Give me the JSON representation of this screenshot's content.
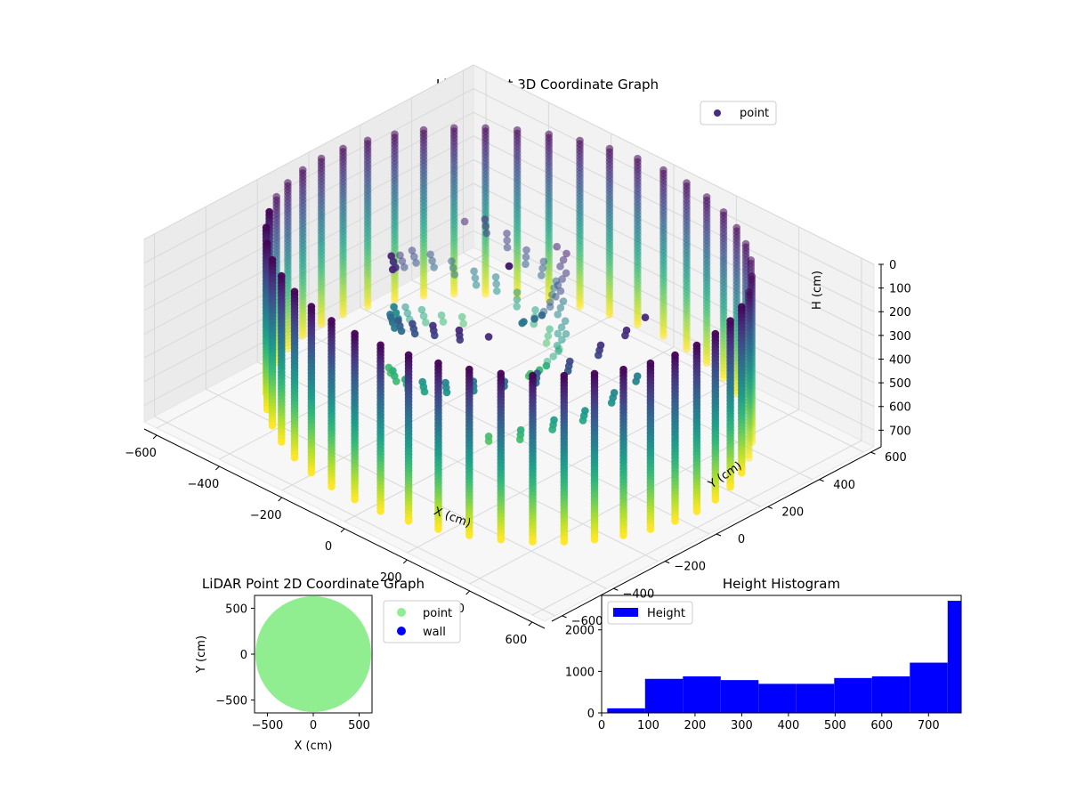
{
  "chart_data": [
    {
      "type": "scatter",
      "projection": "3d",
      "title": "LiDAR Point 3D Coordinate Graph",
      "xlabel": "X (cm)",
      "ylabel": "Y (cm)",
      "zlabel": "H (cm)",
      "x_ticks": [
        -600,
        -400,
        -200,
        0,
        200,
        400,
        600
      ],
      "y_ticks": [
        -600,
        -400,
        -200,
        0,
        200,
        400,
        600
      ],
      "z_ticks": [
        0,
        100,
        200,
        300,
        400,
        500,
        600,
        700
      ],
      "xlim": [
        -640,
        640
      ],
      "ylim": [
        -640,
        640
      ],
      "zlim": [
        0,
        770
      ],
      "z_inverted": true,
      "colormap": "viridis",
      "legend": {
        "position": "top-right",
        "entries": [
          {
            "label": "point",
            "color": "#472d7b"
          }
        ]
      },
      "series": [
        {
          "name": "point",
          "shape": "ring",
          "radius": 600,
          "height_range": [
            0,
            700
          ],
          "columns": 48
        }
      ],
      "grid": true
    },
    {
      "type": "scatter",
      "title": "LiDAR Point 2D Coordinate Graph",
      "xlabel": "X (cm)",
      "ylabel": "Y (cm)",
      "x_ticks": [
        -500,
        0,
        500
      ],
      "y_ticks": [
        -500,
        0,
        500
      ],
      "xlim": [
        -640,
        640
      ],
      "ylim": [
        -640,
        640
      ],
      "legend": {
        "position": "right",
        "entries": [
          {
            "label": "point",
            "color": "#90ee90"
          },
          {
            "label": "wall",
            "color": "#0000ff"
          }
        ]
      },
      "series": [
        {
          "name": "point",
          "color": "#90ee90",
          "shape": "disc",
          "radius": 630
        }
      ],
      "grid": false
    },
    {
      "type": "bar",
      "subtype": "histogram",
      "title": "Height Histogram",
      "x_ticks": [
        0,
        100,
        200,
        300,
        400,
        500,
        600,
        700
      ],
      "y_ticks": [
        0,
        1000,
        2000
      ],
      "xlim": [
        0,
        770
      ],
      "ylim": [
        0,
        2830
      ],
      "color": "#0000ff",
      "legend": {
        "position": "top-left",
        "entries": [
          {
            "label": "Height",
            "color": "#0000ff"
          }
        ]
      },
      "bins": [
        {
          "start": 12,
          "end": 93,
          "value": 110
        },
        {
          "start": 93,
          "end": 174,
          "value": 820
        },
        {
          "start": 174,
          "end": 255,
          "value": 880
        },
        {
          "start": 255,
          "end": 336,
          "value": 790
        },
        {
          "start": 336,
          "end": 417,
          "value": 700
        },
        {
          "start": 417,
          "end": 498,
          "value": 700
        },
        {
          "start": 498,
          "end": 579,
          "value": 840
        },
        {
          "start": 579,
          "end": 660,
          "value": 880
        },
        {
          "start": 660,
          "end": 741,
          "value": 1210
        },
        {
          "start": 741,
          "end": 770,
          "value": 2700
        }
      ]
    }
  ]
}
